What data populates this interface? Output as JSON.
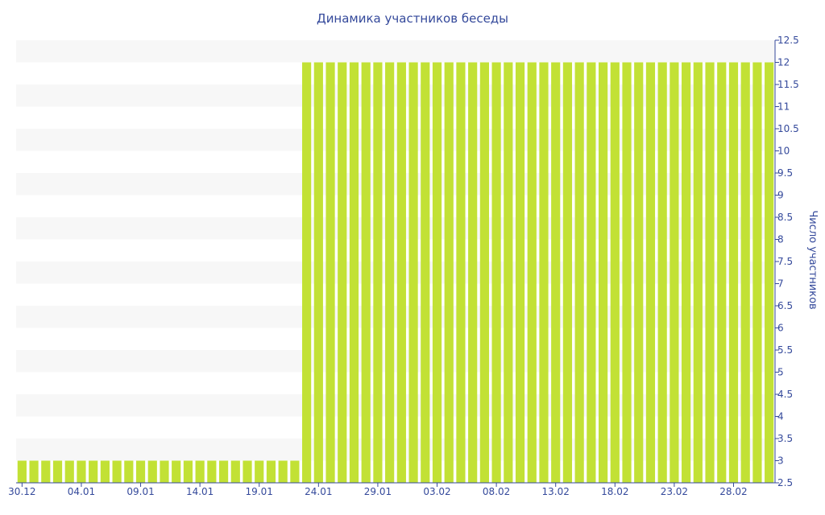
{
  "chart_data": {
    "type": "bar",
    "title": "Динамика участников беседы",
    "xlabel": "",
    "ylabel": "Число участников",
    "ylim": [
      2.5,
      12.5
    ],
    "y_ticks": [
      2.5,
      3,
      3.5,
      4,
      4.5,
      5,
      5.5,
      6,
      6.5,
      7,
      7.5,
      8,
      8.5,
      9,
      9.5,
      10,
      10.5,
      11,
      11.5,
      12,
      12.5
    ],
    "y_axis_side": "right",
    "grid": "alternating horizontal bands",
    "bar_color": "#c2e135",
    "band_color": "#f7f7f7",
    "text_color": "#34499b",
    "x_tick_labels": [
      "30.12",
      "04.01",
      "09.01",
      "14.01",
      "19.01",
      "24.01",
      "29.01",
      "03.02",
      "08.02",
      "13.02",
      "18.02",
      "23.02",
      "28.02"
    ],
    "x_tick_every": 5,
    "categories": [
      "30.12",
      "31.12",
      "01.01",
      "02.01",
      "03.01",
      "04.01",
      "05.01",
      "06.01",
      "07.01",
      "08.01",
      "09.01",
      "10.01",
      "11.01",
      "12.01",
      "13.01",
      "14.01",
      "15.01",
      "16.01",
      "17.01",
      "18.01",
      "19.01",
      "20.01",
      "21.01",
      "22.01",
      "23.01",
      "24.01",
      "25.01",
      "26.01",
      "27.01",
      "28.01",
      "29.01",
      "30.01",
      "31.01",
      "01.02",
      "02.02",
      "03.02",
      "04.02",
      "05.02",
      "06.02",
      "07.02",
      "08.02",
      "09.02",
      "10.02",
      "11.02",
      "12.02",
      "13.02",
      "14.02",
      "15.02",
      "16.02",
      "17.02",
      "18.02",
      "19.02",
      "20.02",
      "21.02",
      "22.02",
      "23.02",
      "24.02",
      "25.02",
      "26.02",
      "27.02",
      "28.02",
      "01.03",
      "02.03",
      "03.03"
    ],
    "values": [
      3,
      3,
      3,
      3,
      3,
      3,
      3,
      3,
      3,
      3,
      3,
      3,
      3,
      3,
      3,
      3,
      3,
      3,
      3,
      3,
      3,
      3,
      3,
      3,
      12,
      12,
      12,
      12,
      12,
      12,
      12,
      12,
      12,
      12,
      12,
      12,
      12,
      12,
      12,
      12,
      12,
      12,
      12,
      12,
      12,
      12,
      12,
      12,
      12,
      12,
      12,
      12,
      12,
      12,
      12,
      12,
      12,
      12,
      12,
      12,
      12,
      12,
      12,
      12
    ]
  }
}
